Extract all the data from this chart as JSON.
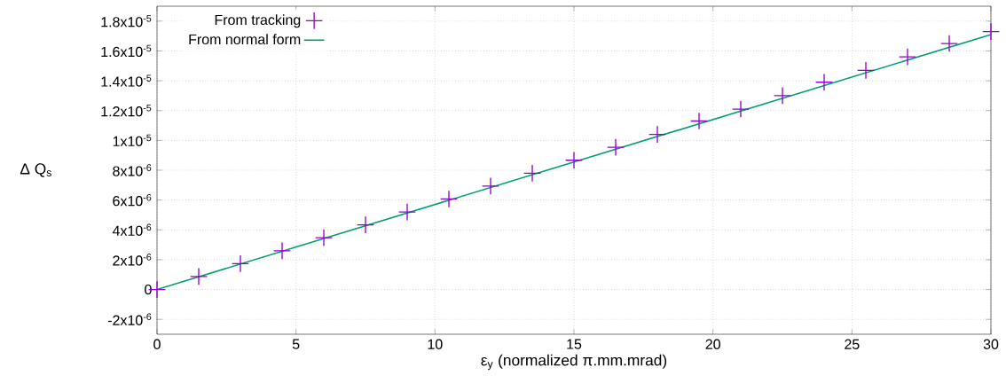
{
  "chart_data": {
    "type": "line",
    "xlabel": "ε$_{y}$ (normalized π.mm.mrad)",
    "ylabel": "Δ Q$_{s}$",
    "x": [
      0,
      1.5,
      3,
      4.5,
      6,
      7.5,
      9,
      10.5,
      12,
      13.5,
      15,
      16.5,
      18,
      19.5,
      21,
      22.5,
      24,
      25.5,
      27,
      28.5,
      30
    ],
    "series": [
      {
        "name": "From tracking",
        "type": "scatter",
        "marker": "cross",
        "color": "#9400d3",
        "values": [
          0,
          8.7e-07,
          1.73e-06,
          2.6e-06,
          3.47e-06,
          4.34e-06,
          5.2e-06,
          6.07e-06,
          6.94e-06,
          7.8e-06,
          8.67e-06,
          9.54e-06,
          1.04e-05,
          1.13e-05,
          1.21e-05,
          1.3e-05,
          1.39e-05,
          1.47e-05,
          1.56e-05,
          1.65e-05,
          1.73e-05
        ]
      },
      {
        "name": "From normal form",
        "type": "line",
        "marker": "none",
        "color": "#009e73",
        "x": [
          0,
          30
        ],
        "values": [
          0,
          1.71e-05
        ]
      }
    ],
    "xlim": [
      0,
      30
    ],
    "xticks": [
      0,
      5,
      10,
      15,
      20,
      25,
      30
    ],
    "ylim": [
      -3e-06,
      1.9e-05
    ],
    "yticks": [
      {
        "value": -2e-06,
        "label": "-2x10$^{-6}$"
      },
      0,
      {
        "value": 2e-06,
        "label": "2x10$^{-6}$"
      },
      {
        "value": 4e-06,
        "label": "4x10$^{-6}$"
      },
      {
        "value": 6e-06,
        "label": "6x10$^{-6}$"
      },
      {
        "value": 8e-06,
        "label": "8x10$^{-6}$"
      },
      {
        "value": 1e-05,
        "label": "1x10$^{-5}$"
      },
      {
        "value": 1.2e-05,
        "label": "1.2x10$^{-5}$"
      },
      {
        "value": 1.4e-05,
        "label": "1.4x10$^{-5}$"
      },
      {
        "value": 1.6e-05,
        "label": "1.6x10$^{-5}$"
      },
      {
        "value": 1.8e-05,
        "label": "1.8x10$^{-5}$"
      }
    ],
    "grid": true,
    "legend": "top left"
  }
}
